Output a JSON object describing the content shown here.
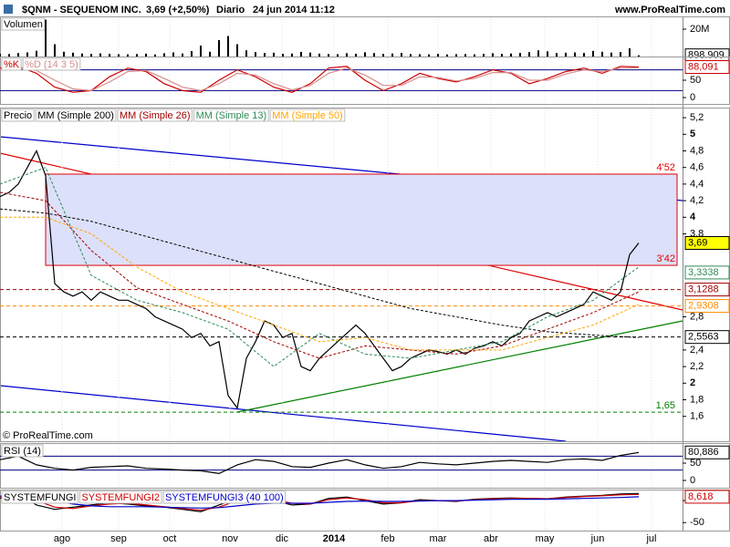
{
  "header": {
    "title": "$QNM - SEQUENOM INC.",
    "quote": "3,69 (+2,50%)",
    "period": "Diario",
    "datetime": "24 jun 2014 11:12",
    "site": "www.ProRealTime.com"
  },
  "footer": {
    "copyright": "© ProRealTime.com"
  },
  "x_axis_labels": [
    "ago",
    "sep",
    "oct",
    "nov",
    "dic",
    "2014",
    "feb",
    "mar",
    "abr",
    "may",
    "jun",
    "jul"
  ],
  "chart_data": [
    {
      "type": "bar",
      "ylim": [
        0,
        28000000
      ],
      "yticks": [
        {
          "value": 20000000,
          "label": "20M"
        }
      ],
      "value_boxes": [
        {
          "value": 898909,
          "label": "898.909",
          "color": "#000000"
        }
      ],
      "series": [
        {
          "name": "Volumen",
          "color": "#000000",
          "values": [
            2100000,
            1800000,
            2500000,
            3000000,
            4200000,
            27000000,
            9000000,
            3500000,
            2800000,
            2200000,
            1900000,
            2300000,
            2000000,
            1700000,
            1600000,
            1800000,
            2100000,
            1500000,
            2400000,
            3000000,
            2200000,
            4000000,
            8000000,
            3500000,
            12000000,
            15000000,
            9000000,
            4500000,
            3200000,
            2600000,
            2800000,
            2000000,
            2200000,
            3400000,
            2900000,
            2100000,
            1800000,
            1700000,
            2400000,
            2000000,
            3100000,
            2500000,
            1900000,
            2200000,
            2600000,
            1800000,
            1700000,
            1600000,
            1900000,
            1500000,
            1700000,
            1800000,
            1600000,
            2000000,
            2400000,
            1900000,
            2200000,
            2600000,
            3200000,
            4500000,
            3800000,
            2500000,
            2800000,
            3000000,
            2600000,
            4100000,
            3500000,
            2900000,
            3300000,
            6000000,
            898909
          ]
        }
      ]
    },
    {
      "type": "line",
      "ylim": [
        0,
        100
      ],
      "yticks": [
        50,
        0
      ],
      "bands": [
        80,
        20
      ],
      "value_boxes": [
        {
          "value": 88.091,
          "label": "88,091",
          "color": "#cc0000"
        }
      ],
      "series": [
        {
          "name": "%K",
          "color": "#cc0000",
          "values": [
            85,
            90,
            70,
            30,
            15,
            20,
            60,
            85,
            75,
            40,
            20,
            15,
            50,
            80,
            60,
            30,
            15,
            40,
            85,
            90,
            50,
            20,
            40,
            70,
            55,
            45,
            60,
            80,
            70,
            40,
            55,
            75,
            85,
            70,
            90,
            88.091
          ]
        },
        {
          "name": "%D (14 3 5)",
          "color": "#d98c8c",
          "values": [
            80,
            85,
            78,
            50,
            25,
            20,
            45,
            75,
            78,
            55,
            30,
            20,
            40,
            70,
            65,
            40,
            22,
            35,
            70,
            85,
            65,
            35,
            35,
            60,
            58,
            48,
            55,
            72,
            72,
            50,
            50,
            68,
            80,
            75,
            85,
            86
          ]
        }
      ]
    },
    {
      "type": "line",
      "ylim": [
        1.3,
        5.3
      ],
      "zone_fill": "#dde0fa",
      "yticks": [
        {
          "value": 5.2,
          "label": "5,2"
        },
        5,
        {
          "value": 4.8,
          "label": "4,8"
        },
        {
          "value": 4.6,
          "label": "4,6"
        },
        {
          "value": 4.4,
          "label": "4,4"
        },
        {
          "value": 4.2,
          "label": "4,2"
        },
        4,
        {
          "value": 3.8,
          "label": "3,8"
        },
        {
          "value": 2.8,
          "label": "2,8"
        },
        {
          "value": 2.4,
          "label": "2,4"
        },
        {
          "value": 2.2,
          "label": "2,2"
        },
        2,
        {
          "value": 1.8,
          "label": "1,8"
        },
        {
          "value": 1.6,
          "label": "1,6"
        }
      ],
      "levels": [
        {
          "value": 4.52,
          "label": "4'52",
          "color": "#e00000"
        },
        {
          "value": 3.42,
          "label": "3'42",
          "color": "#e00000"
        },
        {
          "value": 1.65,
          "label": "1,65",
          "color": "#008000",
          "dashed": true
        }
      ],
      "value_boxes": [
        {
          "value": 3.69,
          "label": "3,69",
          "color": "#000000",
          "background": "#ffff00"
        },
        {
          "value": 3.3338,
          "label": "3,3338",
          "color": "#2e8b57"
        },
        {
          "value": 3.1288,
          "label": "3,1288",
          "color": "#a00000",
          "line": true
        },
        {
          "value": 2.9308,
          "label": "2,9308",
          "color": "#ff8c00",
          "line": true
        },
        {
          "value": 2.5563,
          "label": "2,5563",
          "color": "#000000",
          "line": true
        }
      ],
      "series": [
        {
          "name": "Precio",
          "color": "#000000",
          "values": [
            4.25,
            4.3,
            4.4,
            4.6,
            4.8,
            4.5,
            3.2,
            3.1,
            3.05,
            3.1,
            3.0,
            3.1,
            3.05,
            3.0,
            3.0,
            2.95,
            2.9,
            2.8,
            2.75,
            2.7,
            2.65,
            2.55,
            2.6,
            2.45,
            2.5,
            1.85,
            1.7,
            2.3,
            2.5,
            2.75,
            2.7,
            2.55,
            2.6,
            2.2,
            2.15,
            2.3,
            2.4,
            2.5,
            2.6,
            2.7,
            2.6,
            2.45,
            2.3,
            2.15,
            2.2,
            2.3,
            2.35,
            2.4,
            2.38,
            2.35,
            2.4,
            2.35,
            2.42,
            2.45,
            2.5,
            2.45,
            2.55,
            2.6,
            2.75,
            2.8,
            2.85,
            2.8,
            2.85,
            2.9,
            2.95,
            3.1,
            3.05,
            3.0,
            3.1,
            3.55,
            3.69
          ]
        },
        {
          "name": "MM (Simple 200)",
          "color": "#000000",
          "dashed": true,
          "values": [
            4.1,
            4.05,
            3.95,
            3.8,
            3.65,
            3.5,
            3.35,
            3.2,
            3.05,
            2.9,
            2.8,
            2.7,
            2.62,
            2.58,
            2.55
          ]
        },
        {
          "name": "MM (Simple 26)",
          "color": "#a00000",
          "dashed": true,
          "values": [
            4.3,
            4.2,
            3.6,
            3.15,
            2.95,
            2.75,
            2.5,
            2.3,
            2.45,
            2.4,
            2.35,
            2.45,
            2.65,
            2.85,
            3.1
          ]
        },
        {
          "name": "MM (Simple 13)",
          "color": "#2e8b57",
          "dashed": true,
          "values": [
            4.4,
            4.6,
            3.3,
            3.0,
            2.85,
            2.65,
            2.2,
            2.6,
            2.35,
            2.3,
            2.4,
            2.5,
            2.8,
            3.0,
            3.4
          ]
        },
        {
          "name": "MM (Simple 50)",
          "color": "#ffa500",
          "dashed": true,
          "values": [
            4.0,
            4.0,
            3.8,
            3.4,
            3.1,
            2.9,
            2.7,
            2.5,
            2.55,
            2.4,
            2.4,
            2.4,
            2.55,
            2.7,
            2.95
          ]
        }
      ]
    },
    {
      "type": "line",
      "ylim": [
        0,
        100
      ],
      "yticks": [
        50,
        0
      ],
      "bands": [
        70,
        30
      ],
      "value_boxes": [
        {
          "value": 80.886,
          "label": "80,886",
          "color": "#000000"
        }
      ],
      "series": [
        {
          "name": "RSI (14)",
          "color": "#000000",
          "values": [
            60,
            70,
            45,
            35,
            30,
            38,
            40,
            42,
            35,
            33,
            30,
            28,
            20,
            45,
            60,
            55,
            40,
            38,
            50,
            60,
            45,
            35,
            40,
            52,
            48,
            45,
            50,
            55,
            58,
            55,
            52,
            60,
            62,
            58,
            72,
            80.886
          ]
        }
      ]
    },
    {
      "type": "line",
      "ylim": [
        -64,
        25
      ],
      "yticks": [
        0,
        -50
      ],
      "value_boxes": [
        {
          "value": 8.618,
          "label": "8,618",
          "color": "#cc0000"
        }
      ],
      "series": [
        {
          "name": "SYSTEMFUNGI",
          "color": "#000000",
          "values": [
            5,
            15,
            -10,
            -20,
            -15,
            -10,
            -5,
            -8,
            -12,
            -15,
            -20,
            -25,
            -10,
            5,
            8,
            0,
            -10,
            -8,
            5,
            8,
            0,
            -8,
            -5,
            2,
            0,
            -2,
            3,
            5,
            6,
            5,
            4,
            8,
            10,
            12,
            15,
            16
          ]
        },
        {
          "name": "SYSTEMFUNGI2",
          "color": "#cc0000",
          "values": [
            8,
            12,
            0,
            -15,
            -18,
            -12,
            -8,
            -6,
            -10,
            -14,
            -18,
            -22,
            -15,
            0,
            5,
            2,
            -6,
            -8,
            2,
            6,
            2,
            -5,
            -5,
            0,
            0,
            -1,
            2,
            4,
            5,
            5,
            4,
            7,
            9,
            11,
            13,
            14
          ]
        },
        {
          "name": "SYSTEMFUNGI3 (40 100)",
          "color": "#0000cc",
          "values": [
            10,
            11,
            8,
            0,
            -8,
            -12,
            -14,
            -14,
            -14,
            -15,
            -16,
            -17,
            -16,
            -12,
            -8,
            -6,
            -6,
            -6,
            -4,
            -2,
            -1,
            -2,
            -2,
            -1,
            0,
            0,
            1,
            2,
            3,
            3,
            3,
            4,
            5,
            6,
            7,
            8.618
          ]
        }
      ]
    }
  ]
}
